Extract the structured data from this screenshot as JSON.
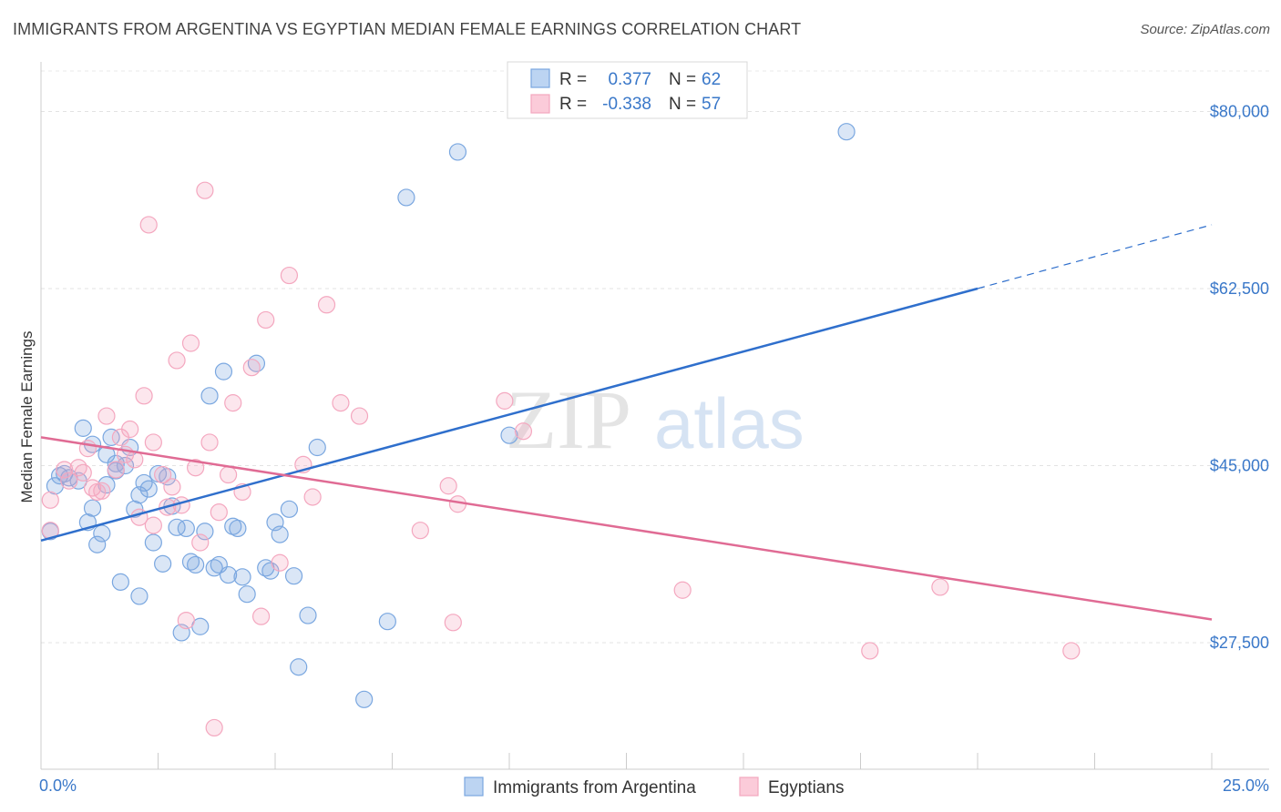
{
  "title": "IMMIGRANTS FROM ARGENTINA VS EGYPTIAN MEDIAN FEMALE EARNINGS CORRELATION CHART",
  "source": "Source: ZipAtlas.com",
  "watermark": {
    "zip": "ZIP",
    "atlas": "atlas"
  },
  "chart_data": {
    "type": "scatter",
    "xlabel": "",
    "ylabel": "Median Female Earnings",
    "xlim": [
      0,
      25
    ],
    "ylim": [
      15000,
      84000
    ],
    "x_tick_labels": [
      "0.0%",
      "25.0%"
    ],
    "y_ticks": [
      27500,
      45000,
      62500,
      80000
    ],
    "y_tick_labels": [
      "$27,500",
      "$45,000",
      "$62,500",
      "$80,000"
    ],
    "legend": {
      "rows": [
        {
          "r_label": "R =",
          "r_value": "0.377",
          "n_label": "N =",
          "n_value": "62"
        },
        {
          "r_label": "R =",
          "r_value": "-0.338",
          "n_label": "N =",
          "n_value": "57"
        }
      ]
    },
    "series": [
      {
        "name": "Immigrants from Argentina",
        "color": "#7aa7e0",
        "line_color": "#2f6fcc",
        "trend": {
          "x0": 0,
          "y0": 37600,
          "x1": 20,
          "y1": 62500,
          "dash_to_x": 25,
          "dash_to_y": 68800
        },
        "points": [
          [
            0.3,
            43000
          ],
          [
            0.5,
            44200
          ],
          [
            0.6,
            43800
          ],
          [
            0.8,
            43500
          ],
          [
            0.9,
            48700
          ],
          [
            1.0,
            39400
          ],
          [
            1.1,
            40800
          ],
          [
            1.1,
            47100
          ],
          [
            1.2,
            37200
          ],
          [
            1.3,
            38300
          ],
          [
            1.4,
            43100
          ],
          [
            1.4,
            46100
          ],
          [
            1.5,
            47800
          ],
          [
            1.6,
            44500
          ],
          [
            1.7,
            33500
          ],
          [
            1.8,
            45000
          ],
          [
            1.9,
            46800
          ],
          [
            2.0,
            40700
          ],
          [
            2.1,
            32100
          ],
          [
            2.1,
            42100
          ],
          [
            2.2,
            43300
          ],
          [
            2.3,
            42700
          ],
          [
            2.4,
            37400
          ],
          [
            2.5,
            44200
          ],
          [
            2.6,
            35300
          ],
          [
            2.7,
            43900
          ],
          [
            2.8,
            41000
          ],
          [
            2.9,
            38900
          ],
          [
            3.0,
            28500
          ],
          [
            3.1,
            38800
          ],
          [
            3.2,
            35500
          ],
          [
            3.3,
            35200
          ],
          [
            3.4,
            29100
          ],
          [
            3.5,
            38500
          ],
          [
            3.6,
            51900
          ],
          [
            3.7,
            34900
          ],
          [
            3.8,
            35200
          ],
          [
            3.9,
            54300
          ],
          [
            4.0,
            34200
          ],
          [
            4.1,
            39000
          ],
          [
            4.2,
            38800
          ],
          [
            4.3,
            34000
          ],
          [
            4.4,
            32300
          ],
          [
            4.6,
            55100
          ],
          [
            4.8,
            34900
          ],
          [
            4.9,
            34600
          ],
          [
            5.0,
            39400
          ],
          [
            5.1,
            38200
          ],
          [
            5.3,
            40700
          ],
          [
            5.4,
            34100
          ],
          [
            5.5,
            25100
          ],
          [
            5.7,
            30200
          ],
          [
            5.9,
            46800
          ],
          [
            6.9,
            21900
          ],
          [
            7.4,
            29600
          ],
          [
            7.8,
            71500
          ],
          [
            8.9,
            76000
          ],
          [
            10.0,
            48000
          ],
          [
            17.2,
            78000
          ],
          [
            0.4,
            44000
          ],
          [
            0.2,
            38500
          ],
          [
            1.6,
            45200
          ]
        ]
      },
      {
        "name": "Egyptians",
        "color": "#f4a7bf",
        "line_color": "#e06b94",
        "trend": {
          "x0": 0,
          "y0": 47800,
          "x1": 25,
          "y1": 29800
        },
        "points": [
          [
            0.2,
            38600
          ],
          [
            0.2,
            41600
          ],
          [
            0.5,
            44600
          ],
          [
            0.6,
            43500
          ],
          [
            0.8,
            44800
          ],
          [
            1.0,
            46700
          ],
          [
            1.1,
            42800
          ],
          [
            1.2,
            42400
          ],
          [
            1.4,
            49900
          ],
          [
            1.6,
            44600
          ],
          [
            1.7,
            47800
          ],
          [
            1.8,
            46100
          ],
          [
            1.9,
            48600
          ],
          [
            2.0,
            45600
          ],
          [
            2.1,
            39900
          ],
          [
            2.2,
            51900
          ],
          [
            2.3,
            68800
          ],
          [
            2.4,
            47300
          ],
          [
            2.6,
            44100
          ],
          [
            2.7,
            40900
          ],
          [
            2.8,
            42900
          ],
          [
            2.9,
            55400
          ],
          [
            3.0,
            41100
          ],
          [
            3.1,
            29700
          ],
          [
            3.2,
            57100
          ],
          [
            3.3,
            44800
          ],
          [
            3.4,
            37400
          ],
          [
            3.5,
            72200
          ],
          [
            3.6,
            47300
          ],
          [
            3.8,
            40400
          ],
          [
            4.0,
            44100
          ],
          [
            4.1,
            51200
          ],
          [
            4.3,
            42400
          ],
          [
            4.5,
            54700
          ],
          [
            4.7,
            30100
          ],
          [
            4.8,
            59400
          ],
          [
            5.1,
            35400
          ],
          [
            5.3,
            63800
          ],
          [
            5.6,
            45100
          ],
          [
            5.8,
            41900
          ],
          [
            6.1,
            60900
          ],
          [
            6.4,
            51200
          ],
          [
            6.8,
            49900
          ],
          [
            8.1,
            38600
          ],
          [
            8.7,
            43000
          ],
          [
            8.8,
            29500
          ],
          [
            8.9,
            41200
          ],
          [
            9.9,
            51400
          ],
          [
            10.3,
            48400
          ],
          [
            13.7,
            32700
          ],
          [
            17.7,
            26700
          ],
          [
            19.2,
            33000
          ],
          [
            22.0,
            26700
          ],
          [
            3.7,
            19100
          ],
          [
            1.3,
            42500
          ],
          [
            0.9,
            44300
          ],
          [
            2.4,
            39100
          ]
        ]
      }
    ]
  }
}
